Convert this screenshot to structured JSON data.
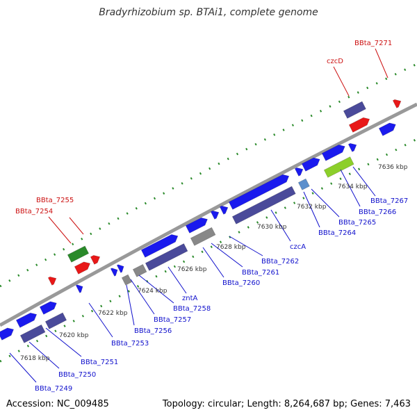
{
  "title": "Bradyrhizobium sp. BTAi1, complete genome",
  "footer": {
    "accession": "Accession: NC_009485",
    "topology": "Topology: circular; Length: 8,264,687 bp; Genes: 7,463"
  },
  "colors": {
    "forward_gene": "#1a1aee",
    "reverse_gene": "#4a4a9a",
    "rna_gene": "#e81818",
    "pseudo_gene": "#888888",
    "highlight_green": "#2a8a2a",
    "highlight_lime": "#8ccf2a",
    "light_blue_gene": "#5b8fcc",
    "backbone": "#999999",
    "dotted_track": "#2a8a2a",
    "blue_label": "#1010cc",
    "red_label": "#cc1010"
  },
  "ticks": [
    "7618 kbp",
    "7620 kbp",
    "7622 kbp",
    "7624 kbp",
    "7626 kbp",
    "7628 kbp",
    "7630 kbp",
    "7632 kbp",
    "7634 kbp",
    "7636 kbp"
  ],
  "labels": {
    "bbta_7249": "BBta_7249",
    "bbta_7250": "BBta_7250",
    "bbta_7251": "BBta_7251",
    "bbta_7253": "BBta_7253",
    "bbta_7254": "BBta_7254",
    "bbta_7255": "BBta_7255",
    "bbta_7256": "BBta_7256",
    "bbta_7257": "BBta_7257",
    "bbta_7258": "BBta_7258",
    "znta": "zntA",
    "bbta_7260": "BBta_7260",
    "bbta_7261": "BBta_7261",
    "bbta_7262": "BBta_7262",
    "czca": "czcA",
    "bbta_7264": "BBta_7264",
    "bbta_7265": "BBta_7265",
    "bbta_7266": "BBta_7266",
    "bbta_7267": "BBta_7267",
    "czcd": "czcD",
    "bbta_7271": "BBta_7271"
  }
}
